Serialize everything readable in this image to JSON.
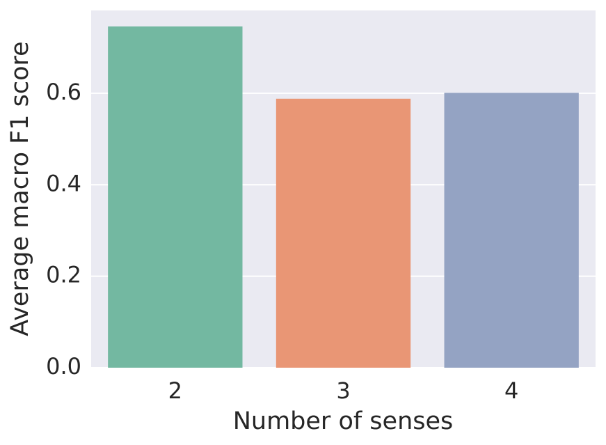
{
  "chart_data": {
    "type": "bar",
    "x_label": "Number of senses",
    "y_label": "Average macro F1 score",
    "categories": [
      "2",
      "3",
      "4"
    ],
    "values": [
      0.746,
      0.588,
      0.601
    ],
    "colors": [
      "#73b8a1",
      "#e99675",
      "#94a3c3"
    ],
    "ylim": [
      0,
      0.781
    ],
    "yticks": [
      {
        "value": 0,
        "label": "0.0"
      },
      0.2,
      0.4,
      0.6
    ],
    "grid": true
  }
}
